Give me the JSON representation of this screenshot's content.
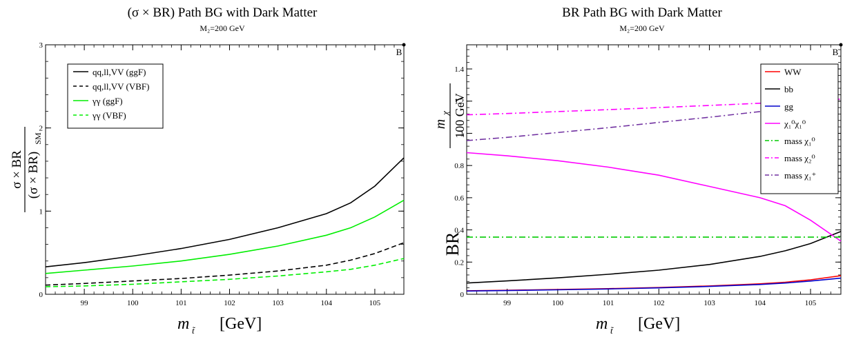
{
  "chart_data": [
    {
      "type": "line",
      "title": "(σ × BR)  Path BG with Dark Matter",
      "subtitle": "M₂=200 GeV",
      "corner_label": "B",
      "xlabel": "m̃t   [GeV]",
      "xlabel_main": "m",
      "xlabel_sub": "t̃",
      "xlabel_unit": "[GeV]",
      "ylabel_num": "σ × BR",
      "ylabel_den": "(σ × BR)",
      "ylabel_den_sub": "SM",
      "xlim": [
        98.2,
        105.6
      ],
      "ylim": [
        0,
        3
      ],
      "x_ticks": [
        "99",
        "100",
        "101",
        "102",
        "103",
        "104",
        "105"
      ],
      "x_tick_values": [
        99,
        100,
        101,
        102,
        103,
        104,
        105
      ],
      "y_ticks": [
        "0",
        "1",
        "2",
        "3"
      ],
      "y_tick_values": [
        0,
        1,
        2,
        3
      ],
      "legend_position": "top-left",
      "x": [
        98.2,
        99,
        100,
        101,
        102,
        103,
        104,
        104.5,
        105,
        105.6
      ],
      "series": [
        {
          "name": "qq,ll,VV (ggF)",
          "color": "#000000",
          "dash": "solid",
          "values": [
            0.33,
            0.38,
            0.46,
            0.55,
            0.66,
            0.8,
            0.97,
            1.1,
            1.3,
            1.64
          ]
        },
        {
          "name": "qq,ll,VV (VBF)",
          "color": "#000000",
          "dash": "dashed",
          "values": [
            0.11,
            0.13,
            0.16,
            0.19,
            0.23,
            0.28,
            0.35,
            0.41,
            0.49,
            0.62
          ]
        },
        {
          "name": "γγ (ggF)",
          "color": "#00ee00",
          "dash": "solid",
          "values": [
            0.25,
            0.29,
            0.34,
            0.4,
            0.48,
            0.58,
            0.71,
            0.8,
            0.93,
            1.13
          ]
        },
        {
          "name": "γγ (VBF)",
          "color": "#00ee00",
          "dash": "dashed",
          "values": [
            0.09,
            0.1,
            0.12,
            0.15,
            0.18,
            0.22,
            0.27,
            0.3,
            0.35,
            0.43
          ]
        }
      ]
    },
    {
      "type": "line",
      "title": "BR  Path BG with Dark Matter",
      "subtitle": "M₂=200 GeV",
      "corner_label": "B",
      "xlabel_main": "m",
      "xlabel_sub": "t̃",
      "xlabel_unit": "[GeV]",
      "ylabel_top_num": "m",
      "ylabel_top_num_sub": "χ",
      "ylabel_top_den": "100 GeV",
      "ylabel": "BR",
      "xlim": [
        98.2,
        105.6
      ],
      "ylim": [
        0,
        1.55
      ],
      "x_ticks": [
        "99",
        "100",
        "101",
        "102",
        "103",
        "104",
        "105"
      ],
      "x_tick_values": [
        99,
        100,
        101,
        102,
        103,
        104,
        105
      ],
      "y_ticks": [
        "0",
        "0.2",
        "0.4",
        "0.6",
        "0.8",
        "1",
        "1.2",
        "1.4"
      ],
      "y_tick_values": [
        0,
        0.2,
        0.4,
        0.6,
        0.8,
        1.0,
        1.2,
        1.4
      ],
      "legend_position": "top-right",
      "x": [
        98.2,
        99,
        100,
        101,
        102,
        103,
        104,
        104.5,
        105,
        105.6
      ],
      "series": [
        {
          "name": "WW",
          "color": "#ff0000",
          "dash": "solid",
          "values": [
            0.022,
            0.025,
            0.03,
            0.035,
            0.042,
            0.052,
            0.065,
            0.075,
            0.09,
            0.115
          ]
        },
        {
          "name": "bb",
          "color": "#000000",
          "dash": "solid",
          "values": [
            0.07,
            0.083,
            0.102,
            0.124,
            0.15,
            0.185,
            0.235,
            0.27,
            0.315,
            0.39
          ]
        },
        {
          "name": "gg",
          "color": "#0000cc",
          "dash": "solid",
          "values": [
            0.02,
            0.023,
            0.028,
            0.033,
            0.04,
            0.049,
            0.061,
            0.07,
            0.082,
            0.1
          ]
        },
        {
          "name": "χ₁⁰χ₁⁰",
          "color": "#ff00ff",
          "dash": "solid",
          "values": [
            0.88,
            0.86,
            0.83,
            0.79,
            0.74,
            0.67,
            0.6,
            0.55,
            0.46,
            0.33
          ]
        },
        {
          "name": "mass χ₁⁰",
          "color": "#00cc00",
          "dash": "dashdot",
          "values": [
            0.355,
            0.355,
            0.355,
            0.355,
            0.355,
            0.355,
            0.355,
            0.355,
            0.355,
            0.355
          ]
        },
        {
          "name": "mass χ₂⁰",
          "color": "#ff00ff",
          "dash": "dashdot",
          "values": [
            1.115,
            1.123,
            1.135,
            1.147,
            1.16,
            1.173,
            1.187,
            1.195,
            1.203,
            1.212
          ]
        },
        {
          "name": "mass χ₁⁺",
          "color": "#7030a0",
          "dash": "dashdot",
          "values": [
            0.955,
            0.975,
            1.005,
            1.035,
            1.068,
            1.1,
            1.135,
            1.155,
            1.175,
            1.2
          ]
        }
      ]
    }
  ]
}
